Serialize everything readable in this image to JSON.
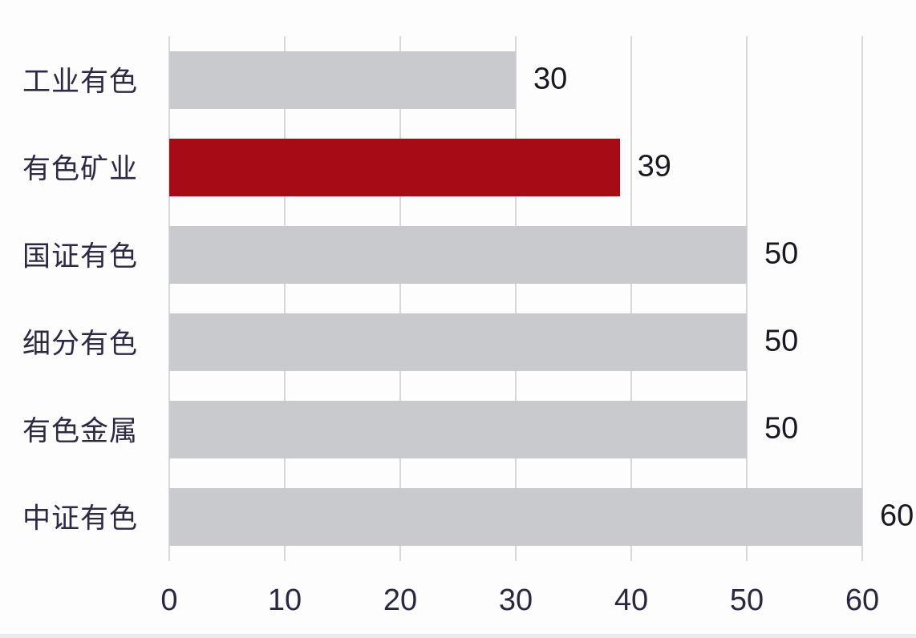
{
  "chart_data": {
    "type": "bar",
    "orientation": "horizontal",
    "title": "",
    "xlabel": "",
    "ylabel": "",
    "categories": [
      "工业有色",
      "有色矿业",
      "国证有色",
      "细分有色",
      "有色金属",
      "中证有色"
    ],
    "values": [
      30,
      39,
      50,
      50,
      50,
      60
    ],
    "data_labels": [
      "30",
      "39",
      "50",
      "50",
      "50",
      "60"
    ],
    "highlight_index": 1,
    "x_ticks": [
      "0",
      "10",
      "20",
      "30",
      "40",
      "50",
      "60"
    ],
    "x_tick_values": [
      0,
      10,
      20,
      30,
      40,
      50,
      60
    ],
    "xlim": [
      0,
      60
    ],
    "grid": "vertical-only",
    "legend": "none",
    "bar_color": "#C9CACD",
    "highlight_color": "#A50C15",
    "category_label_color": "#2E2A44",
    "value_label_color": "#191722",
    "tick_label_color": "#2A2740"
  }
}
